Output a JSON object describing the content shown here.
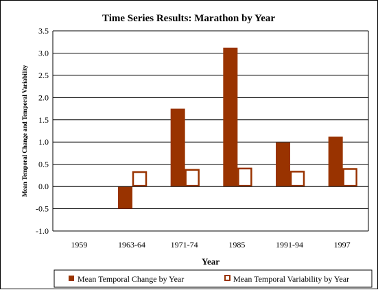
{
  "colors": {
    "change": "#993300",
    "variability_border": "#993300",
    "variability_fill": "#ffffff",
    "grid": "#000000",
    "axis": "#000000"
  },
  "chart_data": {
    "type": "bar",
    "title": "Time Series Results:  Marathon by Year",
    "xlabel": "Year",
    "ylabel": "Mean Temporal Change and Temporal Variability",
    "categories": [
      "1959",
      "1963-64",
      "1971-74",
      "1985",
      "1991-94",
      "1997"
    ],
    "series": [
      {
        "name": "Mean Temporal Change by Year",
        "values": [
          0.0,
          -0.5,
          1.75,
          3.12,
          0.99,
          1.12
        ],
        "style": "filled"
      },
      {
        "name": "Mean Temporal Variability by Year",
        "values": [
          0.0,
          0.34,
          0.39,
          0.42,
          0.35,
          0.41
        ],
        "style": "outlined"
      }
    ],
    "ylim": [
      -1.0,
      3.5
    ],
    "yticks": [
      -1.0,
      -0.5,
      0.0,
      0.5,
      1.0,
      1.5,
      2.0,
      2.5,
      3.0,
      3.5
    ],
    "ytick_labels": [
      "-1.0",
      "-0.5",
      "0.0",
      "0.5",
      "1.0",
      "1.5",
      "2.0",
      "2.5",
      "3.0",
      "3.5"
    ],
    "grid": true,
    "legend": "bottom"
  }
}
